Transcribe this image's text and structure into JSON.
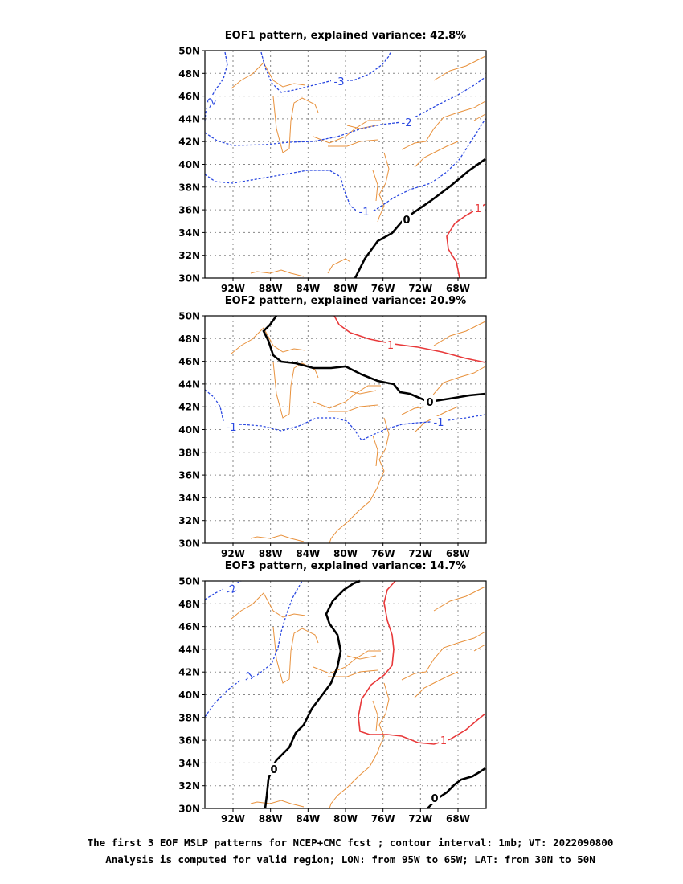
{
  "colors": {
    "coast": "#e8913c",
    "positive": "#e8393a",
    "negative": "#2947e0",
    "zero": "#000000",
    "grid": "#888888"
  },
  "axes": {
    "lon_labels": [
      "92W",
      "88W",
      "84W",
      "80W",
      "76W",
      "72W",
      "68W"
    ],
    "lat_labels": [
      "50N",
      "48N",
      "46N",
      "44N",
      "42N",
      "40N",
      "38N",
      "36N",
      "34N",
      "32N",
      "30N"
    ],
    "lon_range": [
      -95,
      -65
    ],
    "lat_range": [
      30,
      50
    ]
  },
  "panels": [
    {
      "title": "EOF1 pattern, explained variance: 42.8%",
      "contours": [
        {
          "value": "-3",
          "kind": "negative",
          "label": "-3"
        },
        {
          "value": "-2",
          "kind": "negative",
          "label": "-2"
        },
        {
          "value": "-2",
          "kind": "negative",
          "label": "-2"
        },
        {
          "value": "-1",
          "kind": "negative",
          "label": "-1"
        },
        {
          "value": "0",
          "kind": "zero",
          "label": "0"
        },
        {
          "value": "1",
          "kind": "positive",
          "label": "1"
        }
      ]
    },
    {
      "title": "EOF2 pattern, explained variance: 20.9%",
      "contours": [
        {
          "value": "1",
          "kind": "positive",
          "label": "1"
        },
        {
          "value": "0",
          "kind": "zero",
          "label": "0"
        },
        {
          "value": "-1",
          "kind": "negative",
          "label": "-1"
        },
        {
          "value": "-1",
          "kind": "negative",
          "label": "-1"
        }
      ]
    },
    {
      "title": "EOF3 pattern, explained variance: 14.7%",
      "contours": [
        {
          "value": "-2",
          "kind": "negative",
          "label": "-2"
        },
        {
          "value": "-1",
          "kind": "negative",
          "label": "-1"
        },
        {
          "value": "0",
          "kind": "zero",
          "label": "0"
        },
        {
          "value": "0",
          "kind": "zero",
          "label": "0"
        },
        {
          "value": "1",
          "kind": "positive",
          "label": "1"
        }
      ]
    }
  ],
  "caption": {
    "line1": "The first 3 EOF MSLP patterns for NCEP+CMC fcst ; contour interval: 1mb; VT: 2022090800",
    "line2": "Analysis is computed for valid region; LON: from 95W to 65W; LAT: from 30N to 50N"
  }
}
